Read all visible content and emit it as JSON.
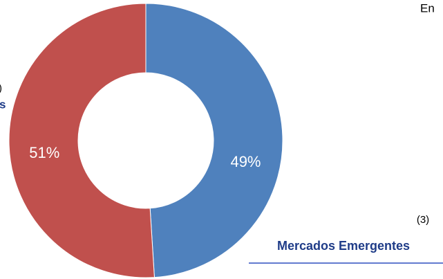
{
  "chart_data": {
    "type": "donut",
    "values": [
      49,
      51
    ],
    "value_labels": [
      "49%",
      "51%"
    ],
    "colors": [
      "#4f81bd",
      "#c0504d"
    ],
    "annotations": [
      "En",
      ")",
      "s",
      "(3)",
      "Mercados Emergentes"
    ]
  }
}
